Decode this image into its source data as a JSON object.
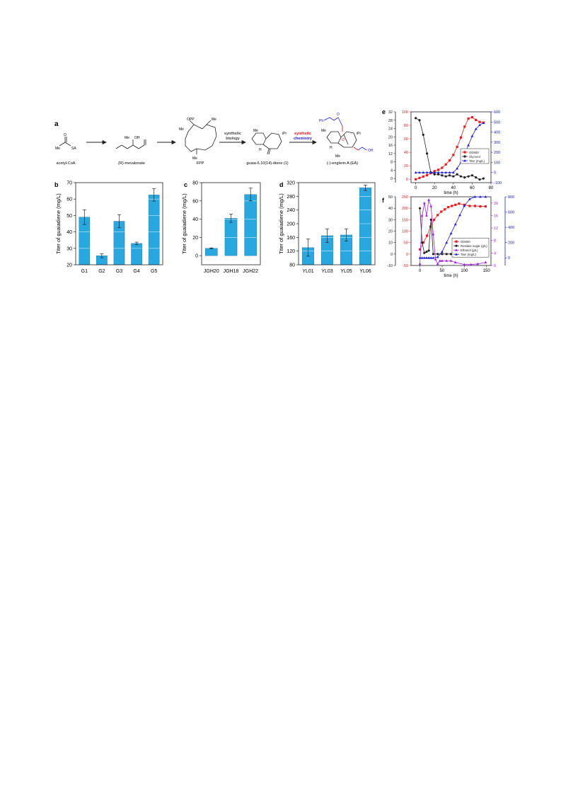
{
  "panel_a": {
    "letter": "a",
    "compounds": [
      "acetyl-CoA",
      "(R)-mevalonate",
      "FPP",
      "guaia-6,10(14)-diene (1)",
      "(-)-englerin A (EA)"
    ],
    "step1": [
      "synthetic",
      "biology"
    ],
    "step2": [
      "synthetic",
      "chemistry"
    ],
    "atom_labels": {
      "me": "Me",
      "oh": "OH",
      "opp": "OPP",
      "ipr": "iPr",
      "h": "H",
      "o": "O",
      "ph": "Ph",
      "sa": "SA"
    }
  },
  "chart_data": [
    {
      "panel": "b",
      "type": "bar",
      "categories": [
        "G1",
        "G2",
        "G3",
        "G4",
        "G5"
      ],
      "values": [
        49,
        25.5,
        46.5,
        33,
        62.5
      ],
      "errors": [
        4.5,
        1.2,
        4,
        0.8,
        3.8
      ],
      "ylabel": "Titer of guaiadiene (mg/L)",
      "ylim": [
        20,
        70
      ],
      "yticks": [
        20,
        30,
        40,
        50,
        60,
        70
      ],
      "color": "#29a8e0"
    },
    {
      "panel": "c",
      "type": "bar",
      "categories": [
        "JGH20",
        "JGH18",
        "JGH22"
      ],
      "values": [
        8,
        41,
        67
      ],
      "errors": [
        0.5,
        4.5,
        7
      ],
      "ylabel": "Titer of guaiadiene (mg/L)",
      "ylim": [
        -10,
        80
      ],
      "yticks": [
        0,
        20,
        40,
        60,
        80
      ],
      "color": "#29a8e0"
    },
    {
      "panel": "d",
      "type": "bar",
      "categories": [
        "YL01",
        "YL03",
        "YL05",
        "YL06"
      ],
      "values": [
        130,
        165,
        167,
        305
      ],
      "errors": [
        25,
        20,
        18,
        8
      ],
      "ylabel": "Titer of guaiadiene (mg/L)",
      "ylim": [
        80,
        320
      ],
      "yticks": [
        80,
        120,
        160,
        200,
        240,
        280,
        320
      ],
      "color": "#29a8e0"
    },
    {
      "panel": "e",
      "type": "line",
      "xlabel": "time (h)",
      "xlim": [
        -5,
        80
      ],
      "xticks": [
        0,
        20,
        40,
        60,
        80
      ],
      "axes": {
        "left_outer": {
          "ylim": [
            -2,
            32
          ],
          "ticks": [
            0,
            4,
            8,
            12,
            16,
            20,
            24,
            28,
            32
          ],
          "color": "#222222"
        },
        "left_inner": {
          "ylim": [
            -5,
            100
          ],
          "ticks": [
            0,
            20,
            40,
            60,
            80,
            100
          ],
          "color": "#e02020"
        },
        "right": {
          "ylim": [
            -100,
            600
          ],
          "ticks": [
            -100,
            0,
            100,
            200,
            300,
            400,
            500,
            600
          ],
          "color": "#2020d0"
        }
      },
      "series": [
        {
          "name": "OD600",
          "axis": "left_inner",
          "color": "#e02020",
          "marker": "square",
          "x": [
            0,
            4,
            8,
            12,
            16,
            20,
            24,
            28,
            32,
            36,
            40,
            44,
            48,
            52,
            56,
            60,
            64,
            68,
            72
          ],
          "y": [
            0,
            2,
            4,
            6,
            9,
            12,
            14,
            17,
            22,
            28,
            36,
            48,
            62,
            78,
            90,
            92,
            88,
            85,
            84
          ]
        },
        {
          "name": "Glycerol",
          "axis": "left_outer",
          "color": "#222222",
          "marker": "circle",
          "x": [
            0,
            4,
            8,
            12,
            16,
            20,
            24,
            28,
            32,
            36,
            40,
            44,
            48,
            52,
            56,
            60,
            64,
            68,
            72
          ],
          "y": [
            29,
            28,
            21,
            12,
            3,
            2,
            2,
            1.5,
            1,
            1.5,
            1,
            2,
            1,
            0.5,
            1,
            1.5,
            0.5,
            -0.5,
            0
          ]
        },
        {
          "name": "Titer (mg/L)",
          "axis": "right",
          "color": "#2020d0",
          "marker": "triangle",
          "x": [
            0,
            4,
            8,
            12,
            16,
            20,
            24,
            28,
            32,
            36,
            40,
            44,
            48,
            52,
            56,
            60,
            64,
            68,
            72
          ],
          "y": [
            0,
            0,
            0,
            0,
            0,
            0,
            0,
            0,
            0,
            0,
            0,
            40,
            100,
            180,
            270,
            360,
            430,
            470,
            490
          ]
        }
      ]
    },
    {
      "panel": "f",
      "type": "line",
      "xlabel": "time (h)",
      "xlim": [
        -20,
        160
      ],
      "xticks": [
        0,
        50,
        100,
        150
      ],
      "axes": {
        "left_outer": {
          "ylim": [
            -10,
            50
          ],
          "ticks": [
            -10,
            0,
            10,
            20,
            30,
            40,
            50
          ],
          "color": "#222222"
        },
        "left_inner": {
          "ylim": [
            -50,
            250
          ],
          "ticks": [
            -50,
            0,
            50,
            100,
            150,
            200,
            250
          ],
          "color": "#e02020"
        },
        "right_inner": {
          "ylim": [
            0,
            22
          ],
          "ticks": [
            0,
            4,
            8,
            12,
            16,
            20
          ],
          "color": "#a020e0"
        },
        "right_outer": {
          "ylim": [
            -100,
            800
          ],
          "ticks": [
            0,
            200,
            400,
            600,
            800
          ],
          "color": "#2020d0"
        }
      },
      "series": [
        {
          "name": "OD600",
          "axis": "left_inner",
          "color": "#e02020",
          "marker": "square",
          "x": [
            0,
            8,
            16,
            24,
            32,
            40,
            48,
            56,
            64,
            72,
            80,
            88,
            100,
            112,
            124,
            136,
            148
          ],
          "y": [
            20,
            50,
            80,
            120,
            150,
            170,
            185,
            195,
            205,
            210,
            215,
            220,
            215,
            210,
            210,
            208,
            208
          ]
        },
        {
          "name": "Residue sugar (g/L)",
          "axis": "left_outer",
          "color": "#222222",
          "marker": "circle",
          "x": [
            0,
            5,
            10,
            15,
            20,
            25,
            30,
            40,
            50,
            60,
            70,
            80,
            100,
            115,
            130,
            148
          ],
          "y": [
            40,
            10,
            1,
            2,
            3,
            30,
            0,
            0,
            0,
            0,
            0,
            0,
            0,
            0,
            0,
            0
          ]
        },
        {
          "name": "Ethanol (g/L)",
          "axis": "right_inner",
          "color": "#a020e0",
          "marker": "triangle",
          "x": [
            0,
            5,
            10,
            15,
            20,
            25,
            30,
            35,
            40,
            45,
            50,
            60,
            70,
            80,
            100,
            115,
            130,
            148
          ],
          "y": [
            0.5,
            16,
            20,
            16,
            21,
            19,
            10,
            2,
            0.5,
            1.5,
            1.5,
            1.5,
            1.5,
            1,
            0.3,
            0.3,
            0.5,
            1
          ]
        },
        {
          "name": "Titer (mg/L)",
          "axis": "right_outer",
          "color": "#2020d0",
          "marker": "triangle",
          "x": [
            0,
            5,
            10,
            15,
            20,
            25,
            30,
            40,
            50,
            60,
            70,
            80,
            90,
            100,
            112,
            124,
            136,
            148
          ],
          "y": [
            0,
            0,
            0,
            0,
            0,
            0,
            0,
            10,
            80,
            200,
            320,
            440,
            560,
            680,
            770,
            800,
            800,
            800
          ]
        }
      ]
    }
  ]
}
